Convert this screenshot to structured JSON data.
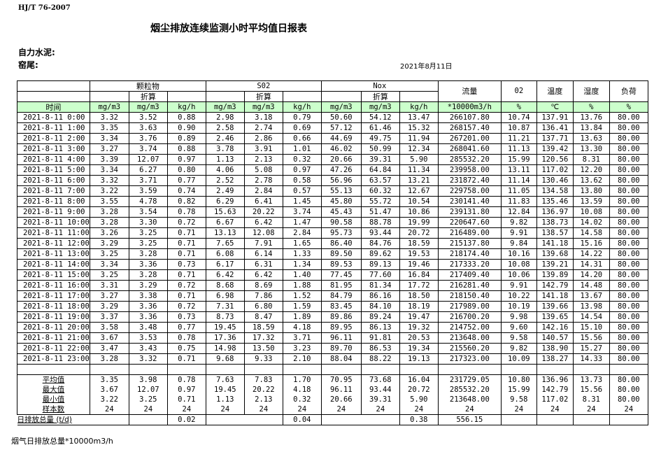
{
  "header": {
    "standard": "HJ/T  76-2007",
    "title": "烟尘排放连续监测小时平均值日报表",
    "company": "自力水泥:",
    "kiln": "窑尾:",
    "date": "2021年8月11日"
  },
  "table": {
    "groups": {
      "particulate": "颗粒物",
      "so2": "S02",
      "nox": "Nox",
      "flow": "流量",
      "o2": "02",
      "temp": "温度",
      "humidity": "湿度",
      "load": "负荷"
    },
    "converted": "折算",
    "time_label": "时间",
    "units": [
      "mg/m3",
      "mg/m3",
      "kg/h",
      "mg/m3",
      "mg/m3",
      "kg/h",
      "mg/m3",
      "mg/m3",
      "kg/h",
      "*10000m3/h",
      "%",
      "℃",
      "%",
      "%"
    ],
    "rows": [
      [
        "2021-8-11 0:00",
        "3.32",
        "3.52",
        "0.88",
        "2.98",
        "3.18",
        "0.79",
        "50.60",
        "54.12",
        "13.47",
        "266107.80",
        "10.74",
        "137.91",
        "13.76",
        "80.00"
      ],
      [
        "2021-8-11 1:00",
        "3.35",
        "3.63",
        "0.90",
        "2.58",
        "2.74",
        "0.69",
        "57.12",
        "61.46",
        "15.32",
        "268157.40",
        "10.87",
        "136.41",
        "13.84",
        "80.00"
      ],
      [
        "2021-8-11 2:00",
        "3.34",
        "3.76",
        "0.89",
        "2.46",
        "2.86",
        "0.66",
        "44.69",
        "49.75",
        "11.94",
        "267201.00",
        "11.21",
        "137.71",
        "13.63",
        "80.00"
      ],
      [
        "2021-8-11 3:00",
        "3.27",
        "3.74",
        "0.88",
        "3.78",
        "3.91",
        "1.01",
        "46.02",
        "50.99",
        "12.34",
        "268041.60",
        "11.13",
        "139.42",
        "13.30",
        "80.00"
      ],
      [
        "2021-8-11 4:00",
        "3.39",
        "12.07",
        "0.97",
        "1.13",
        "2.13",
        "0.32",
        "20.66",
        "39.31",
        "5.90",
        "285532.20",
        "15.99",
        "120.56",
        "8.31",
        "80.00"
      ],
      [
        "2021-8-11 5:00",
        "3.34",
        "6.27",
        "0.80",
        "4.06",
        "5.08",
        "0.97",
        "47.26",
        "64.84",
        "11.34",
        "239958.00",
        "13.11",
        "117.02",
        "12.20",
        "80.00"
      ],
      [
        "2021-8-11 6:00",
        "3.32",
        "3.71",
        "0.77",
        "2.52",
        "2.78",
        "0.58",
        "56.96",
        "63.57",
        "13.21",
        "231872.40",
        "11.14",
        "130.46",
        "13.62",
        "80.00"
      ],
      [
        "2021-8-11 7:00",
        "3.22",
        "3.59",
        "0.74",
        "2.49",
        "2.84",
        "0.57",
        "55.13",
        "60.32",
        "12.67",
        "229758.00",
        "11.05",
        "134.58",
        "13.80",
        "80.00"
      ],
      [
        "2021-8-11 8:00",
        "3.55",
        "4.78",
        "0.82",
        "6.29",
        "6.41",
        "1.45",
        "45.80",
        "55.72",
        "10.54",
        "230141.40",
        "11.83",
        "135.46",
        "13.59",
        "80.00"
      ],
      [
        "2021-8-11 9:00",
        "3.28",
        "3.54",
        "0.78",
        "15.63",
        "20.22",
        "3.74",
        "45.43",
        "51.47",
        "10.86",
        "239131.80",
        "12.84",
        "136.97",
        "10.08",
        "80.00"
      ],
      [
        "2021-8-11 10:00",
        "3.28",
        "3.30",
        "0.72",
        "6.67",
        "6.42",
        "1.47",
        "90.58",
        "88.78",
        "19.99",
        "220647.60",
        "9.82",
        "138.73",
        "14.02",
        "80.00"
      ],
      [
        "2021-8-11 11:00",
        "3.26",
        "3.25",
        "0.71",
        "13.13",
        "12.08",
        "2.84",
        "95.73",
        "93.44",
        "20.72",
        "216489.00",
        "9.91",
        "138.57",
        "14.58",
        "80.00"
      ],
      [
        "2021-8-11 12:00",
        "3.29",
        "3.25",
        "0.71",
        "7.65",
        "7.91",
        "1.65",
        "86.40",
        "84.76",
        "18.59",
        "215137.80",
        "9.84",
        "141.18",
        "15.16",
        "80.00"
      ],
      [
        "2021-8-11 13:00",
        "3.25",
        "3.28",
        "0.71",
        "6.08",
        "6.14",
        "1.33",
        "89.50",
        "89.62",
        "19.53",
        "218174.40",
        "10.16",
        "139.68",
        "14.22",
        "80.00"
      ],
      [
        "2021-8-11 14:00",
        "3.34",
        "3.36",
        "0.73",
        "6.17",
        "6.31",
        "1.34",
        "89.53",
        "89.13",
        "19.46",
        "217333.20",
        "10.08",
        "139.21",
        "14.31",
        "80.00"
      ],
      [
        "2021-8-11 15:00",
        "3.25",
        "3.28",
        "0.71",
        "6.42",
        "6.42",
        "1.40",
        "77.45",
        "77.60",
        "16.84",
        "217409.40",
        "10.06",
        "139.89",
        "14.20",
        "80.00"
      ],
      [
        "2021-8-11 16:00",
        "3.31",
        "3.29",
        "0.72",
        "8.68",
        "8.69",
        "1.88",
        "81.95",
        "81.34",
        "17.72",
        "216281.40",
        "9.91",
        "142.79",
        "14.48",
        "80.00"
      ],
      [
        "2021-8-11 17:00",
        "3.27",
        "3.38",
        "0.71",
        "6.98",
        "7.86",
        "1.52",
        "84.79",
        "86.16",
        "18.50",
        "218150.40",
        "10.22",
        "141.18",
        "13.67",
        "80.00"
      ],
      [
        "2021-8-11 18:00",
        "3.29",
        "3.36",
        "0.72",
        "7.31",
        "6.80",
        "1.59",
        "83.45",
        "84.10",
        "18.19",
        "217989.00",
        "10.19",
        "139.66",
        "13.98",
        "80.00"
      ],
      [
        "2021-8-11 19:00",
        "3.37",
        "3.36",
        "0.73",
        "8.73",
        "8.47",
        "1.89",
        "89.86",
        "89.24",
        "19.47",
        "216700.20",
        "9.98",
        "139.65",
        "14.54",
        "80.00"
      ],
      [
        "2021-8-11 20:00",
        "3.58",
        "3.48",
        "0.77",
        "19.45",
        "18.59",
        "4.18",
        "89.95",
        "86.13",
        "19.32",
        "214752.00",
        "9.60",
        "142.16",
        "15.10",
        "80.00"
      ],
      [
        "2021-8-11 21:00",
        "3.67",
        "3.53",
        "0.78",
        "17.36",
        "17.32",
        "3.71",
        "96.11",
        "91.81",
        "20.53",
        "213648.00",
        "9.58",
        "140.57",
        "15.56",
        "80.00"
      ],
      [
        "2021-8-11 22:00",
        "3.47",
        "3.43",
        "0.75",
        "14.98",
        "13.50",
        "3.23",
        "89.70",
        "86.53",
        "19.34",
        "215560.20",
        "9.82",
        "138.90",
        "15.27",
        "80.00"
      ],
      [
        "2021-8-11 23:00",
        "3.28",
        "3.32",
        "0.71",
        "9.68",
        "9.33",
        "2.10",
        "88.04",
        "88.22",
        "19.13",
        "217323.00",
        "10.09",
        "138.27",
        "14.33",
        "80.00"
      ]
    ],
    "stats": [
      [
        "平均值",
        "3.35",
        "3.98",
        "0.78",
        "7.63",
        "7.83",
        "1.70",
        "70.95",
        "73.68",
        "16.04",
        "231729.05",
        "10.80",
        "136.96",
        "13.73",
        "80.00"
      ],
      [
        "最大值",
        "3.67",
        "12.07",
        "0.97",
        "19.45",
        "20.22",
        "4.18",
        "96.11",
        "93.44",
        "20.72",
        "285532.20",
        "15.99",
        "142.79",
        "15.56",
        "80.00"
      ],
      [
        "最小值",
        "3.22",
        "3.25",
        "0.71",
        "1.13",
        "2.13",
        "0.32",
        "20.66",
        "39.31",
        "5.90",
        "213648.00",
        "9.58",
        "117.02",
        "8.31",
        "80.00"
      ],
      [
        "样本数",
        "24",
        "24",
        "24",
        "24",
        "24",
        "24",
        "24",
        "24",
        "24",
        "24",
        "24",
        "24",
        "24",
        "24"
      ]
    ],
    "daily": {
      "label": "日排放总量 (t/d)",
      "particulate": "0.02",
      "so2": "0.04",
      "nox": "0.38",
      "flow": "556.15"
    }
  },
  "footer": "烟气日排放总量*10000m3/h",
  "colors": {
    "unit_row_bg": "#ccffcc"
  }
}
